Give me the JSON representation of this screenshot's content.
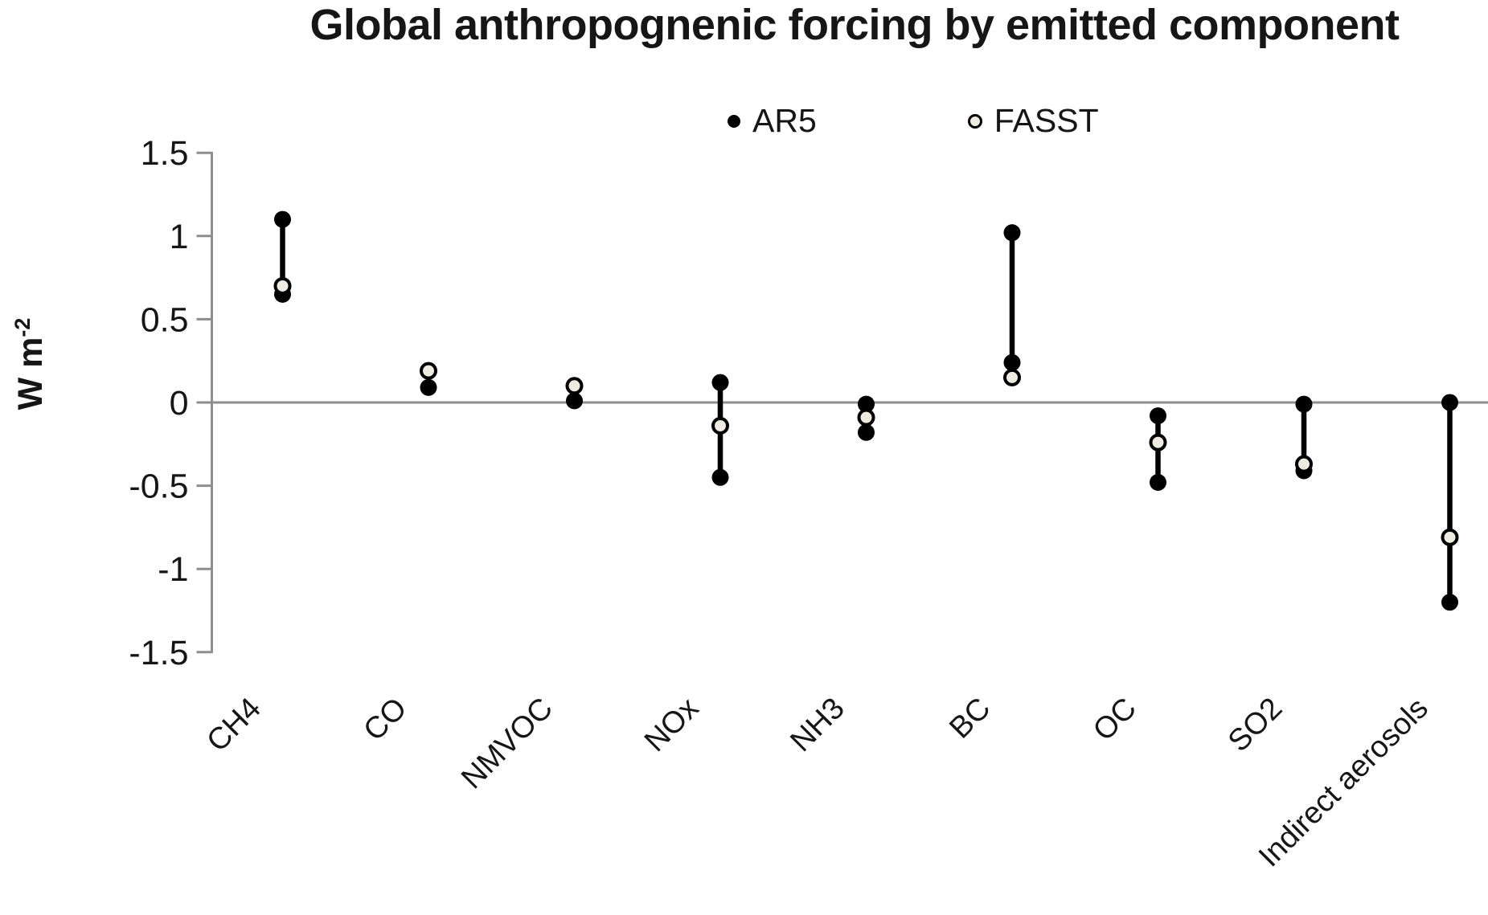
{
  "title": "Global anthropognenic forcing by emitted component",
  "ylabel_base": "W m",
  "ylabel_exponent": "-2",
  "colors": {
    "dot_black": "#000000",
    "open_fill": "#eeece1",
    "axis_gray": "#8e8e8e",
    "text": "#161616"
  },
  "chart_data": {
    "type": "scatter",
    "subtype": "dumbbell-range-comparison",
    "title": "Global anthropognenic forcing by emitted component",
    "xlabel": "",
    "ylabel": "W m-2",
    "ylim": [
      -1.5,
      1.5
    ],
    "y_ticks": [
      {
        "label": "1.5",
        "value": 1.5
      },
      {
        "label": "1",
        "value": 1.0
      },
      {
        "label": "0.5",
        "value": 0.5
      },
      {
        "label": "0",
        "value": 0.0
      },
      {
        "label": "-0.5",
        "value": -0.5
      },
      {
        "label": "-1",
        "value": -1.0
      },
      {
        "label": "-1.5",
        "value": -1.5
      }
    ],
    "grid": "zero-line-only",
    "legend_position": "top",
    "categories": [
      "CH4",
      "CO",
      "NMVOC",
      "NOx",
      "NH3",
      "BC",
      "OC",
      "SO2",
      "Indirect aerosols"
    ],
    "series": [
      {
        "name": "AR5",
        "marker": "filled-black-dot",
        "note": "two dots joined by a vertical line where a range is shown",
        "values": [
          [
            1.1,
            0.65
          ],
          [
            0.09
          ],
          [
            0.01
          ],
          [
            0.12,
            -0.45
          ],
          [
            -0.01,
            -0.18
          ],
          [
            1.02,
            0.24
          ],
          [
            -0.08,
            -0.48
          ],
          [
            -0.01,
            -0.41
          ],
          [
            0.0,
            -1.2
          ]
        ]
      },
      {
        "name": "FASST",
        "marker": "open-cream-dot",
        "values": [
          0.7,
          0.19,
          0.1,
          -0.14,
          -0.09,
          0.15,
          -0.24,
          -0.37,
          -0.81
        ]
      }
    ]
  }
}
